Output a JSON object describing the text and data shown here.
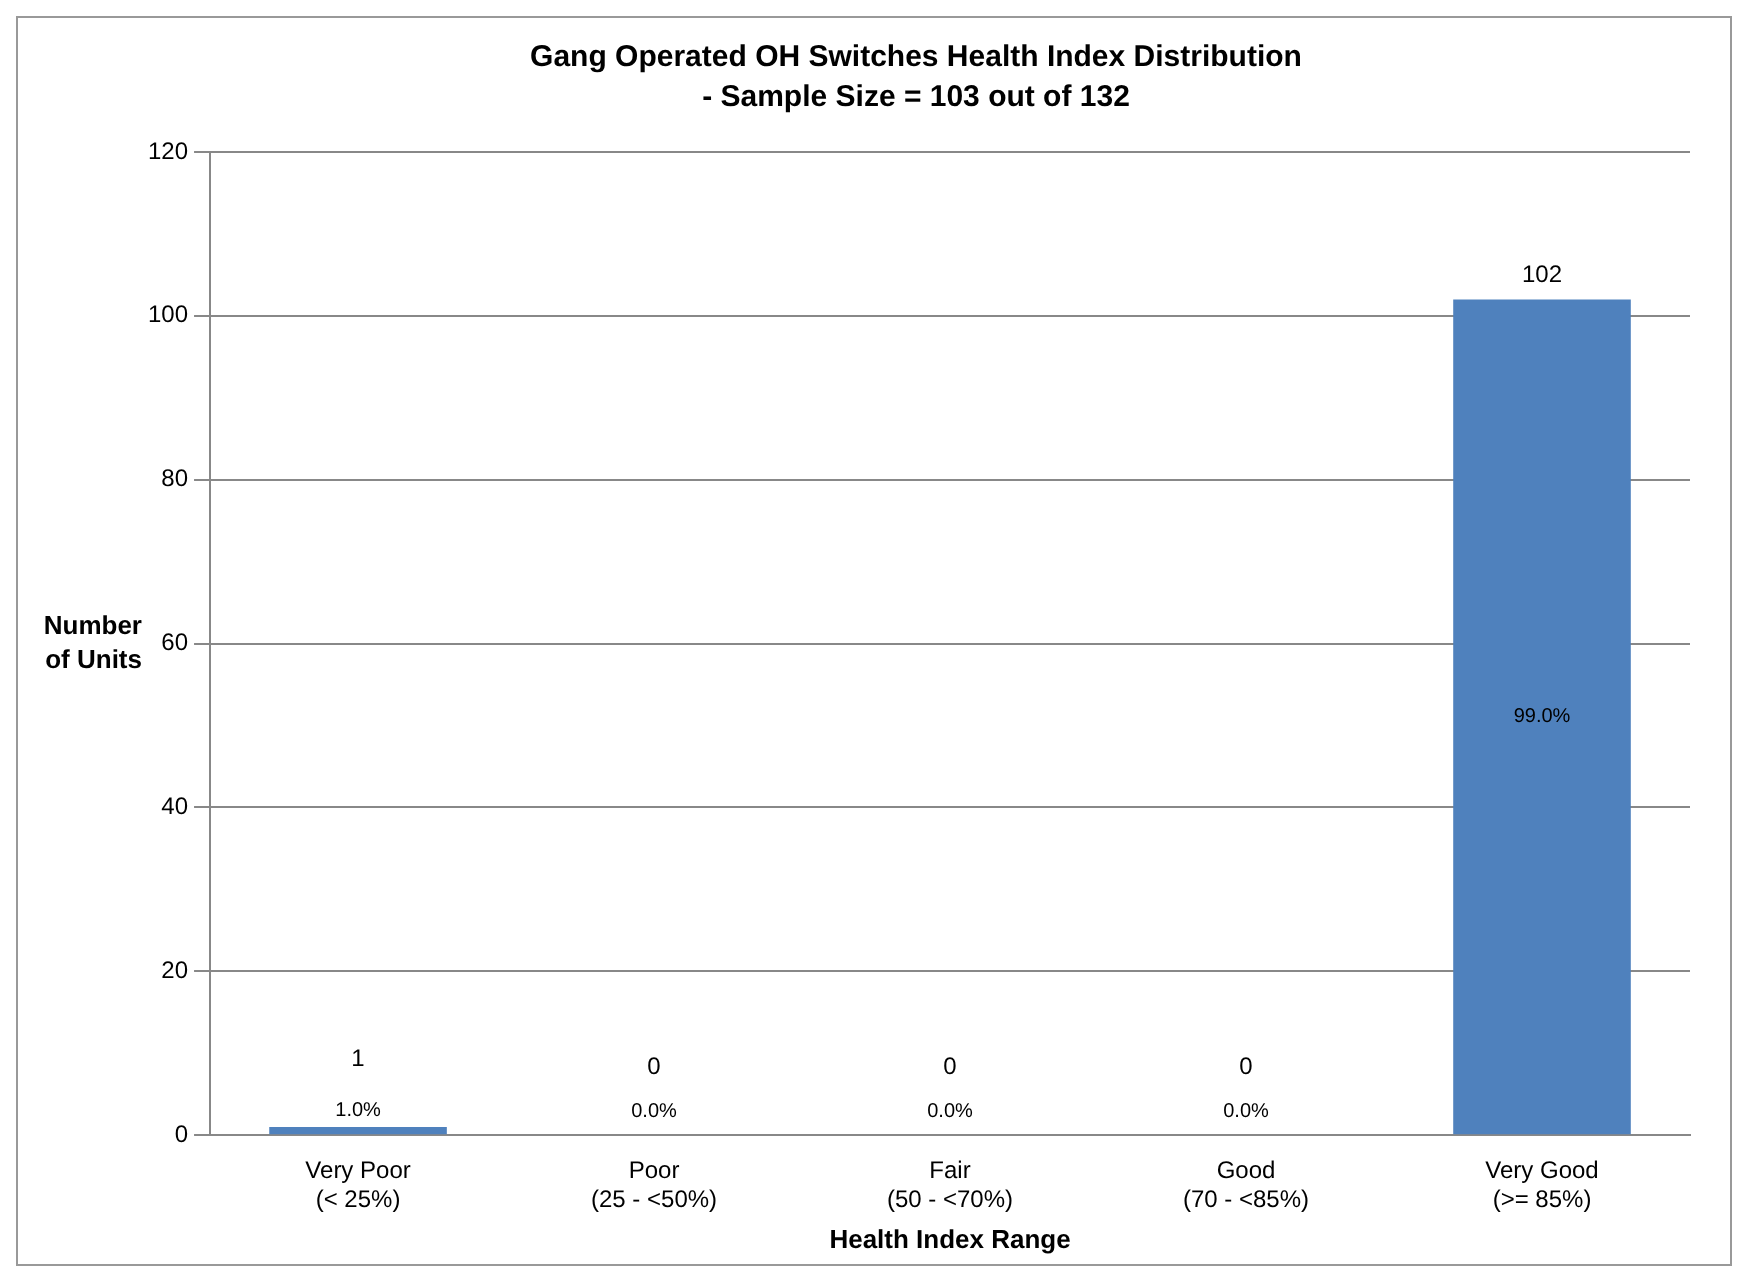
{
  "chart_data": {
    "type": "bar",
    "title": "Gang Operated OH Switches Health Index Distribution",
    "subtitle": "- Sample Size = 103 out of 132",
    "categories": [
      "Very Poor\n(< 25%)",
      "Poor\n(25 - <50%)",
      "Fair\n(50 - <70%)",
      "Good\n(70 - <85%)",
      "Very Good\n(>= 85%)"
    ],
    "values": [
      1,
      0,
      0,
      0,
      102
    ],
    "data_labels": true,
    "annotations": [
      "1.0%",
      "0.0%",
      "0.0%",
      "0.0%",
      "99.0%"
    ],
    "color": "#4f81bd",
    "xlabel": "Health Index Range",
    "ylabel": "Number of Units",
    "ylim": [
      0,
      120
    ],
    "yticks": [
      0,
      20,
      40,
      60,
      80,
      100,
      120
    ],
    "grid": "y",
    "legend": false
  }
}
